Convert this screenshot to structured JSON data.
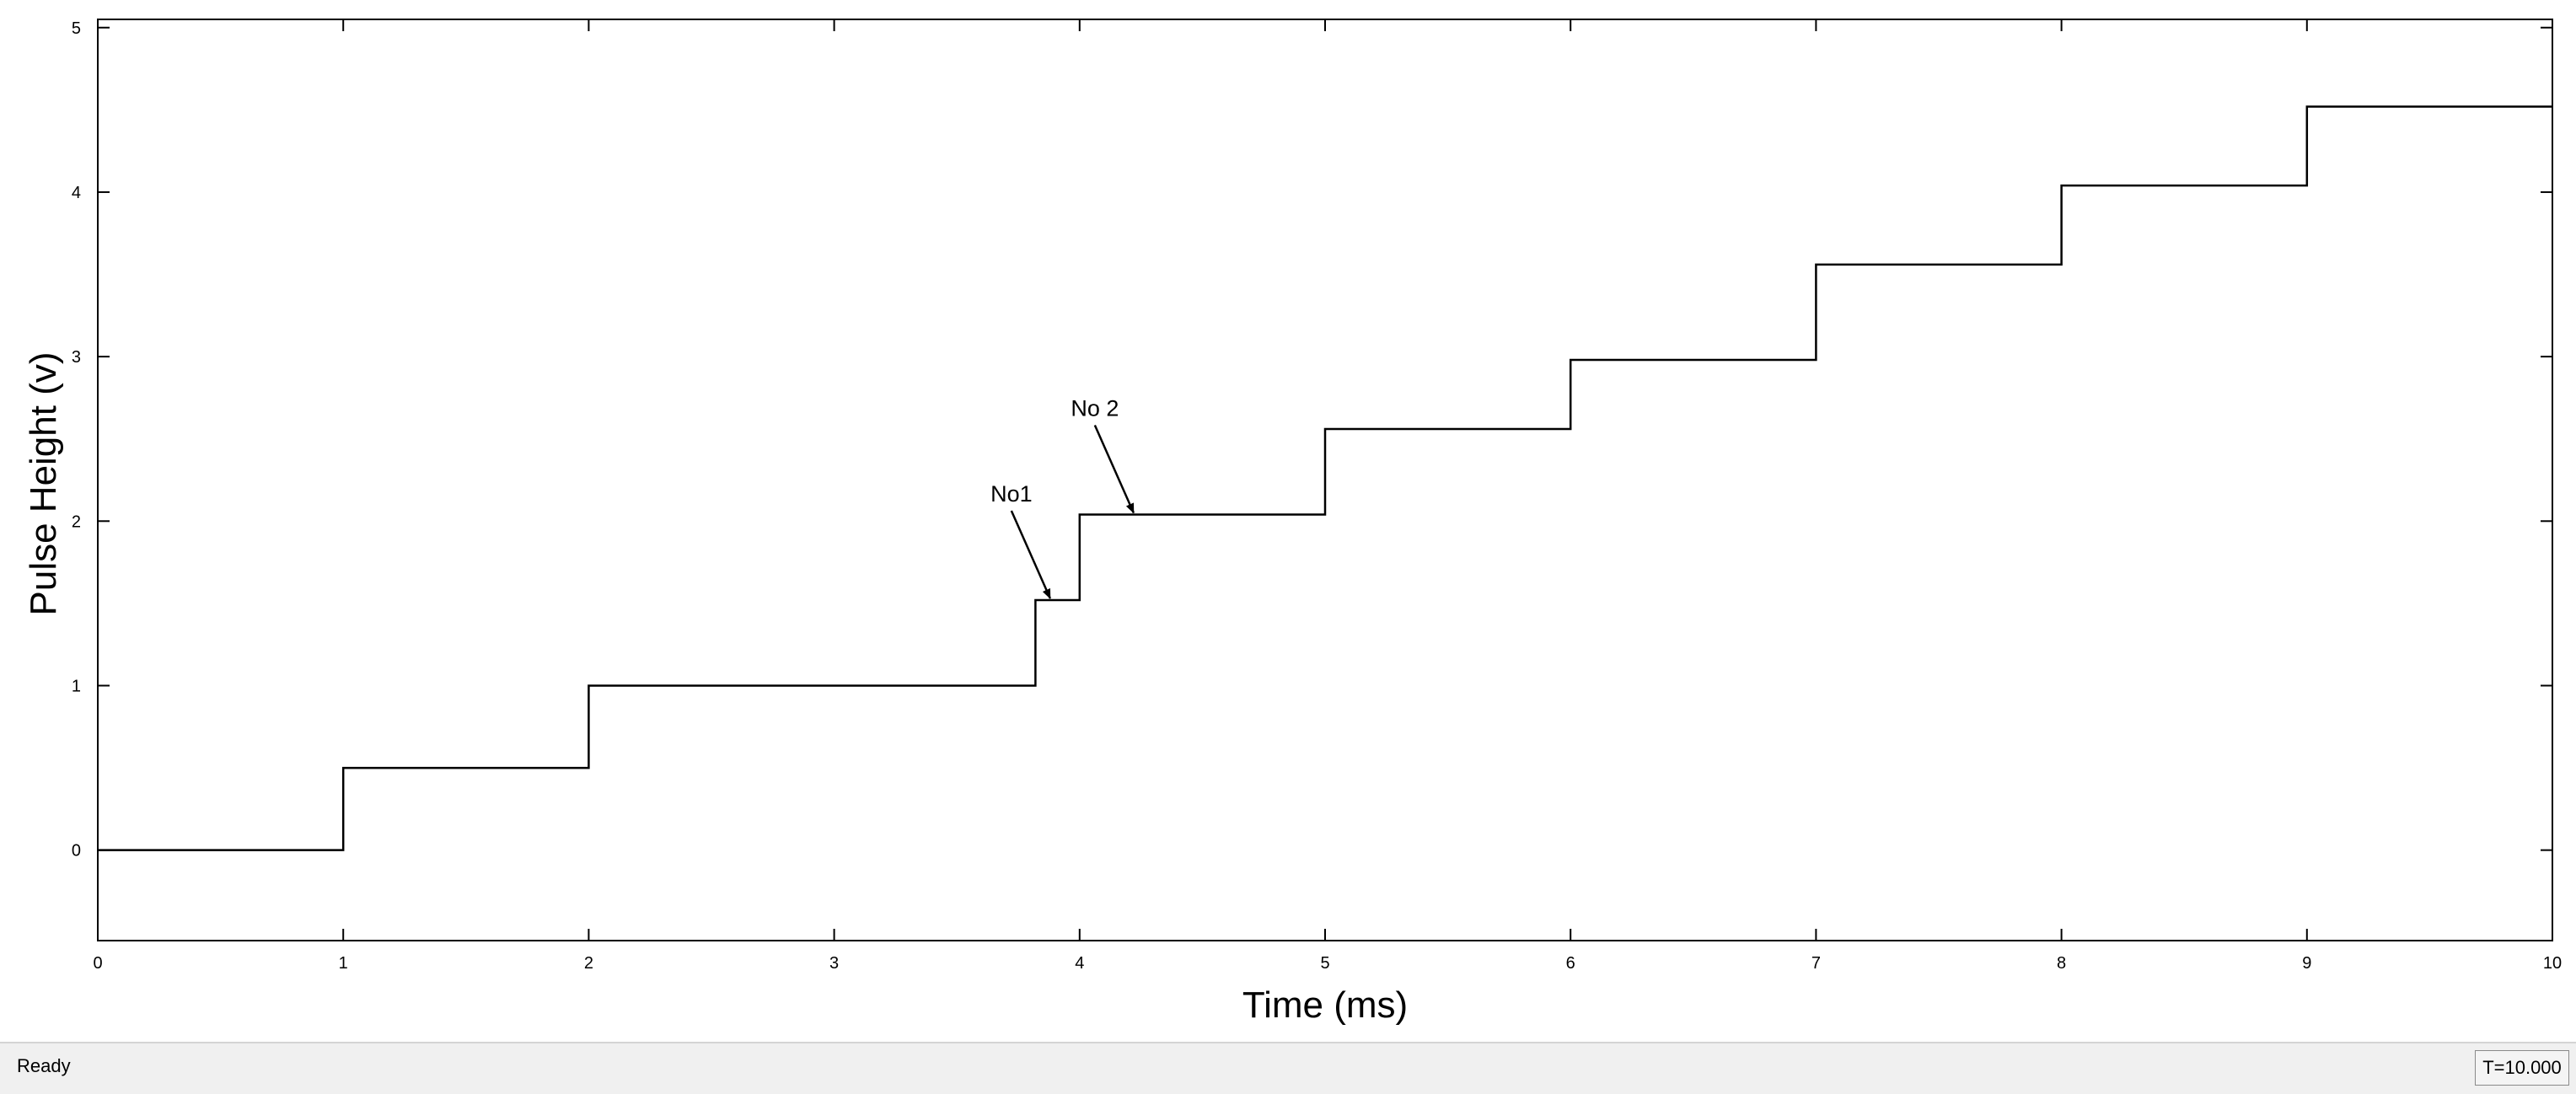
{
  "status_bar": {
    "status_text": "Ready",
    "time_readout": "T=10.000"
  },
  "chart_data": {
    "type": "line",
    "title": "",
    "xlabel": "Time (ms)",
    "ylabel": "Pulse Height (v)",
    "xlim": [
      0,
      10
    ],
    "ylim": [
      -0.55,
      5.05
    ],
    "xticks": [
      0,
      1,
      2,
      3,
      4,
      5,
      6,
      7,
      8,
      9,
      10
    ],
    "yticks": [
      0,
      1,
      2,
      3,
      4,
      5
    ],
    "grid": false,
    "line_color": "#000000",
    "series": [
      {
        "step": "post",
        "x": [
          0,
          1,
          2,
          3.82,
          4,
          5,
          6,
          7,
          8,
          9,
          10
        ],
        "y": [
          0,
          0.5,
          1,
          1.52,
          2.04,
          2.56,
          2.98,
          3.56,
          4.04,
          4.52,
          4.52
        ]
      }
    ],
    "annotations": [
      {
        "text": "No1",
        "x": 3.88,
        "y": 1.52
      },
      {
        "text": "No 2",
        "x": 4.22,
        "y": 2.04
      }
    ]
  }
}
